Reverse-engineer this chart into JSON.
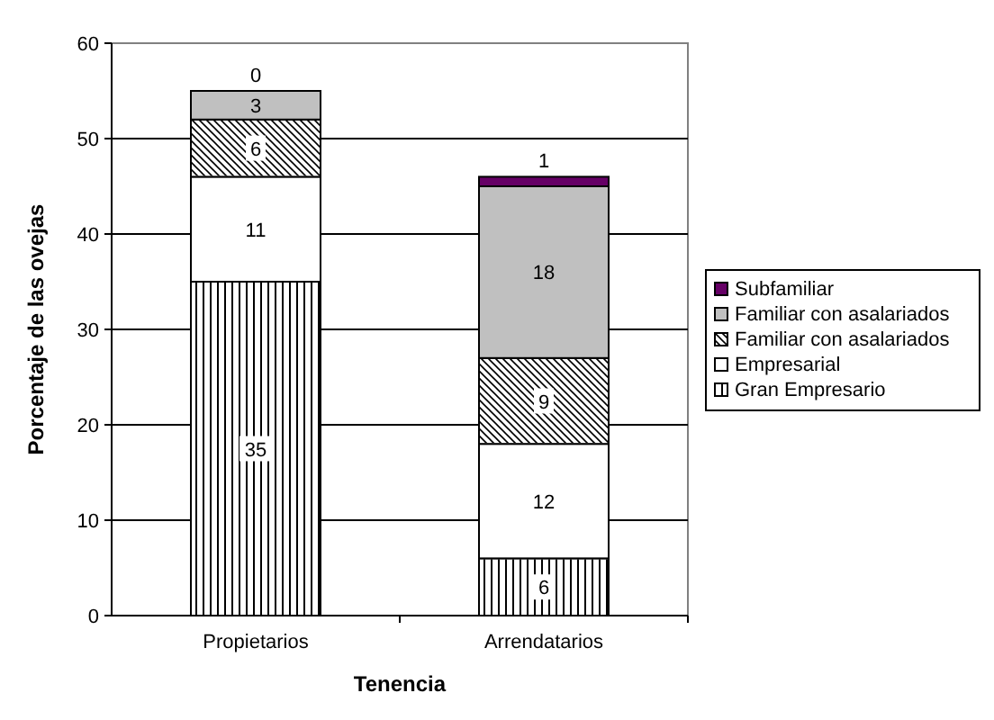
{
  "chart_data": {
    "type": "bar",
    "stacked": true,
    "xlabel": "Tenencia",
    "ylabel": "Porcentaje de las ovejas",
    "categories": [
      "Propietarios",
      "Arrendatarios"
    ],
    "series": [
      {
        "name": "Gran Empresario",
        "color": "#ffffff",
        "values": [
          35,
          6
        ]
      },
      {
        "name": "Empresarial",
        "color": "#ffffff",
        "values": [
          11,
          12
        ]
      },
      {
        "name": "Familiar con asalariados",
        "color": "#ffffff",
        "values": [
          6,
          9
        ]
      },
      {
        "name": "Familiar con asalariados",
        "color": "#c0c0c0",
        "values": [
          3,
          18
        ]
      },
      {
        "name": "Subfamiliar",
        "color": "#660066",
        "values": [
          0,
          1
        ]
      }
    ],
    "ylim": [
      0,
      60
    ],
    "yticks": [
      0,
      10,
      20,
      30,
      40,
      50,
      60
    ],
    "grid": "y",
    "legend": "right",
    "data_labels": true
  }
}
